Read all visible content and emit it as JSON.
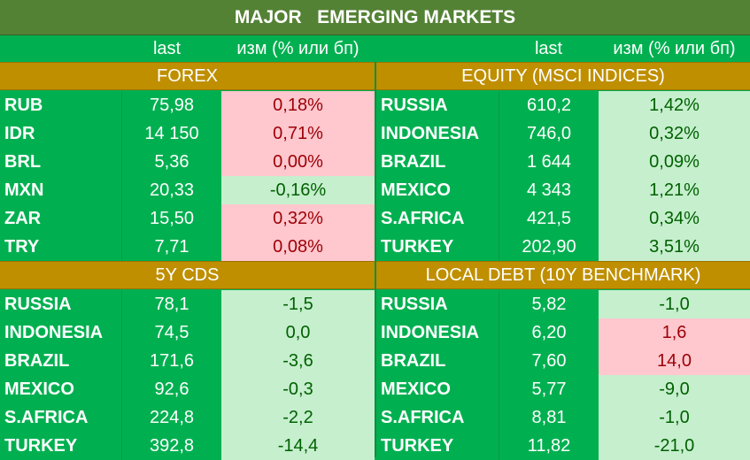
{
  "title": "MAJOR   EMERGING MARKETS",
  "headers": {
    "left": {
      "last": "last",
      "change": "изм (% или бп)"
    },
    "right": {
      "last": "last",
      "change": "изм (% или бп)"
    }
  },
  "colors": {
    "background_green": "#00b050",
    "title_bar": "#548235",
    "section_band": "#bf8f00",
    "up_fill": "#ffc7ce",
    "up_text": "#9c0006",
    "down_fill": "#c6efce",
    "down_text": "#006100"
  },
  "sections": [
    {
      "title": "FOREX",
      "rows": [
        {
          "name": "RUB",
          "last": "75,98",
          "change": "0,18%",
          "tone": "pos"
        },
        {
          "name": "IDR",
          "last": "14 150",
          "change": "0,71%",
          "tone": "pos"
        },
        {
          "name": "BRL",
          "last": "5,36",
          "change": "0,00%",
          "tone": "pos"
        },
        {
          "name": "MXN",
          "last": "20,33",
          "change": "-0,16%",
          "tone": "neg"
        },
        {
          "name": "ZAR",
          "last": "15,50",
          "change": "0,32%",
          "tone": "pos"
        },
        {
          "name": "TRY",
          "last": "7,71",
          "change": "0,08%",
          "tone": "pos"
        }
      ]
    },
    {
      "title": "EQUITY (MSCI INDICES)",
      "rows": [
        {
          "name": "RUSSIA",
          "last": "610,2",
          "change": "1,42%",
          "tone": "neg"
        },
        {
          "name": "INDONESIA",
          "last": "746,0",
          "change": "0,32%",
          "tone": "neg"
        },
        {
          "name": "BRAZIL",
          "last": "1 644",
          "change": "0,09%",
          "tone": "neg"
        },
        {
          "name": "MEXICO",
          "last": "4 343",
          "change": "1,21%",
          "tone": "neg"
        },
        {
          "name": "S.AFRICA",
          "last": "421,5",
          "change": "0,34%",
          "tone": "neg"
        },
        {
          "name": "TURKEY",
          "last": "202,90",
          "change": "3,51%",
          "tone": "neg"
        }
      ]
    },
    {
      "title": "5Y CDS",
      "rows": [
        {
          "name": "RUSSIA",
          "last": "78,1",
          "change": "-1,5",
          "tone": "neg"
        },
        {
          "name": "INDONESIA",
          "last": "74,5",
          "change": "0,0",
          "tone": "neg"
        },
        {
          "name": "BRAZIL",
          "last": "171,6",
          "change": "-3,6",
          "tone": "neg"
        },
        {
          "name": "MEXICO",
          "last": "92,6",
          "change": "-0,3",
          "tone": "neg"
        },
        {
          "name": "S.AFRICA",
          "last": "224,8",
          "change": "-2,2",
          "tone": "neg"
        },
        {
          "name": "TURKEY",
          "last": "392,8",
          "change": "-14,4",
          "tone": "neg"
        }
      ]
    },
    {
      "title": "LOCAL DEBT (10Y BENCHMARK)",
      "rows": [
        {
          "name": "RUSSIA",
          "last": "5,82",
          "change": "-1,0",
          "tone": "neg"
        },
        {
          "name": "INDONESIA",
          "last": "6,20",
          "change": "1,6",
          "tone": "pos"
        },
        {
          "name": "BRAZIL",
          "last": "7,60",
          "change": "14,0",
          "tone": "pos"
        },
        {
          "name": "MEXICO",
          "last": "5,77",
          "change": "-9,0",
          "tone": "neg"
        },
        {
          "name": "S.AFRICA",
          "last": "8,81",
          "change": "-1,0",
          "tone": "neg"
        },
        {
          "name": "TURKEY",
          "last": "11,82",
          "change": "-21,0",
          "tone": "neg"
        }
      ]
    }
  ]
}
